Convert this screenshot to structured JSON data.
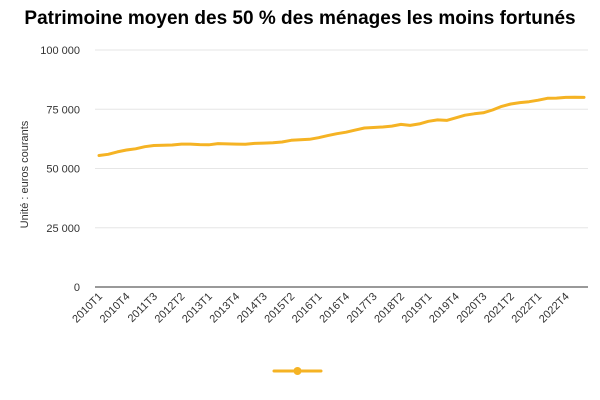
{
  "chart_data": {
    "type": "line",
    "title": "Patrimoine moyen des 50 % des ménages les moins fortunés",
    "ylabel": "Unité : euros courants",
    "xlabel": "",
    "ylim": [
      0,
      100000
    ],
    "yticks": [
      0,
      25000,
      50000,
      75000,
      100000
    ],
    "ytick_labels": [
      "0",
      "25 000",
      "50 000",
      "75 000",
      "100 000"
    ],
    "grid": true,
    "legend": "bottom",
    "color": "#f5b324",
    "x": [
      "2010T1",
      "2010T2",
      "2010T3",
      "2010T4",
      "2011T1",
      "2011T2",
      "2011T3",
      "2011T4",
      "2012T1",
      "2012T2",
      "2012T3",
      "2012T4",
      "2013T1",
      "2013T2",
      "2013T3",
      "2013T4",
      "2014T1",
      "2014T2",
      "2014T3",
      "2014T4",
      "2015T1",
      "2015T2",
      "2015T3",
      "2015T4",
      "2016T1",
      "2016T2",
      "2016T3",
      "2016T4",
      "2017T1",
      "2017T2",
      "2017T3",
      "2017T4",
      "2018T1",
      "2018T2",
      "2018T3",
      "2018T4",
      "2019T1",
      "2019T2",
      "2019T3",
      "2019T4",
      "2020T1",
      "2020T2",
      "2020T3",
      "2020T4",
      "2021T1",
      "2021T2",
      "2021T3",
      "2021T4",
      "2022T1",
      "2022T2",
      "2022T3",
      "2022T4",
      "2023T1",
      "2023T2"
    ],
    "xtick_labels": [
      "2010T1",
      "2010T4",
      "2011T3",
      "2012T2",
      "2013T1",
      "2013T4",
      "2014T3",
      "2015T2",
      "2016T1",
      "2016T4",
      "2017T3",
      "2018T2",
      "2019T1",
      "2019T4",
      "2020T3",
      "2021T2",
      "2022T1",
      "2022T4"
    ],
    "series": [
      {
        "name": "",
        "values": [
          55500,
          56000,
          57000,
          57800,
          58300,
          59200,
          59700,
          59800,
          59900,
          60300,
          60300,
          60100,
          60000,
          60500,
          60400,
          60300,
          60200,
          60600,
          60700,
          60900,
          61200,
          61900,
          62100,
          62300,
          63000,
          63900,
          64700,
          65300,
          66200,
          67100,
          67300,
          67500,
          67900,
          68600,
          68200,
          68800,
          69900,
          70500,
          70300,
          71400,
          72500,
          73100,
          73500,
          74700,
          76200,
          77200,
          77800,
          78200,
          78800,
          79600,
          79700,
          80000,
          80100,
          80000
        ]
      }
    ]
  }
}
